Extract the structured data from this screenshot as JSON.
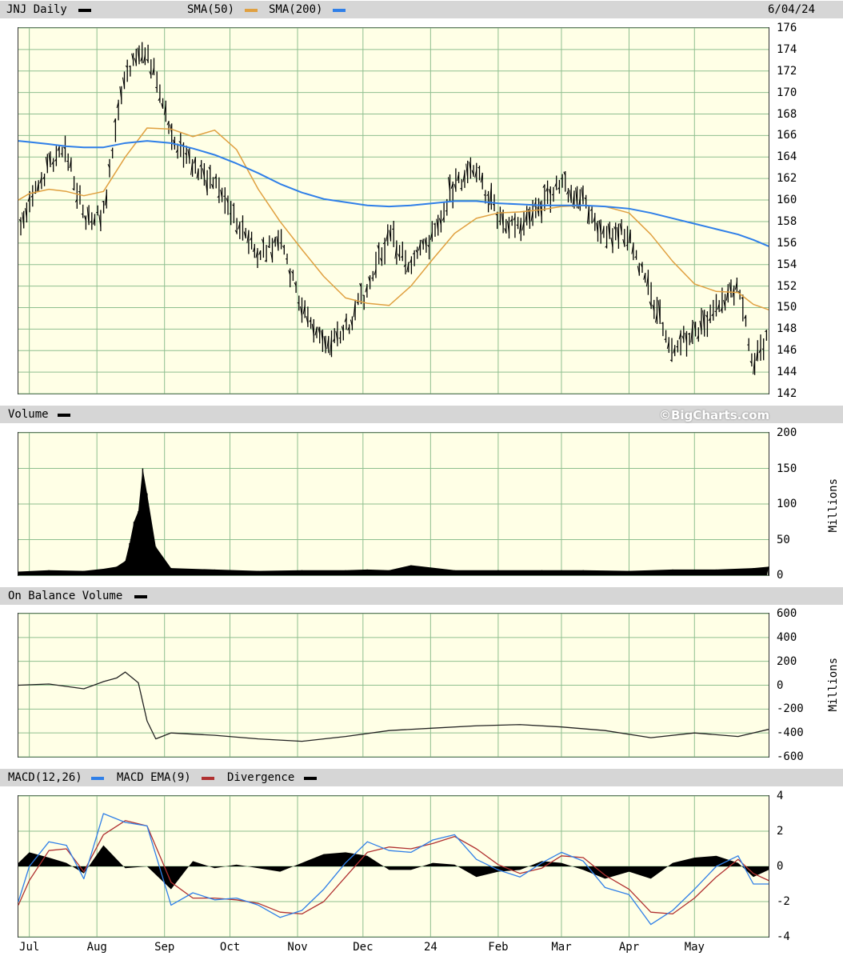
{
  "header": {
    "ticker_label": "JNJ Daily",
    "sma50_label": "SMA(50)",
    "sma200_label": "SMA(200)",
    "date": "6/04/24"
  },
  "volume_header": {
    "label": "Volume",
    "watermark": "©BigCharts.com"
  },
  "obv_header": {
    "label": "On Balance Volume"
  },
  "macd_header": {
    "label": "MACD(12,26)",
    "ema_label": "MACD EMA(9)",
    "div_label": "Divergence"
  },
  "colors": {
    "panel_bg": "#ffffe6",
    "grid": "#8fbf8f",
    "sma50": "#e0a040",
    "sma200": "#2f7fe8",
    "macd": "#2f7fe8",
    "ema": "#b03030",
    "bars": "#000000",
    "header_bg": "#d6d6d6"
  },
  "chart_data": [
    {
      "type": "line",
      "title": "JNJ Daily",
      "x": [
        "Jun 26",
        "Jul 1",
        "Jul 10",
        "Jul 18",
        "Jul 26",
        "Aug 4",
        "Aug 14",
        "Aug 24",
        "Sep 4",
        "Sep 14",
        "Sep 24",
        "Oct 4",
        "Oct 14",
        "Oct 24",
        "Nov 3",
        "Nov 13",
        "Nov 23",
        "Dec 3",
        "Dec 13",
        "Dec 23",
        "Jan 2",
        "Jan 12",
        "Jan 22",
        "Feb 1",
        "Feb 11",
        "Feb 21",
        "Mar 1",
        "Mar 11",
        "Mar 21",
        "Apr 1",
        "Apr 11",
        "Apr 21",
        "May 1",
        "May 11",
        "May 21",
        "May 28",
        "Jun 4"
      ],
      "series": [
        {
          "name": "JNJ",
          "values": [
            157.2,
            159.2,
            163.5,
            164.6,
            158.5,
            158.6,
            172.0,
            174.2,
            166.0,
            163.0,
            161.8,
            158.2,
            154.7,
            156.2,
            150.0,
            146.5,
            148.0,
            151.7,
            156.8,
            153.8,
            156.7,
            161.5,
            162.6,
            158.5,
            157.5,
            159.5,
            161.5,
            160.1,
            156.5,
            157.0,
            151.0,
            146.2,
            147.5,
            149.7,
            151.8,
            145.0,
            147.2
          ]
        },
        {
          "name": "SMA(50)",
          "values": [
            160.0,
            160.6,
            161.0,
            160.8,
            160.4,
            160.8,
            164.0,
            166.7,
            166.6,
            165.9,
            166.5,
            164.7,
            161.0,
            158.0,
            155.4,
            152.9,
            150.9,
            150.4,
            150.2,
            152.0,
            154.5,
            156.9,
            158.3,
            158.8,
            158.9,
            159.1,
            159.4,
            159.5,
            159.4,
            158.8,
            156.8,
            154.3,
            152.2,
            151.5,
            151.4,
            150.3,
            149.8
          ]
        },
        {
          "name": "SMA(200)",
          "values": [
            165.5,
            165.4,
            165.2,
            165.0,
            164.9,
            164.9,
            165.3,
            165.5,
            165.3,
            164.8,
            164.2,
            163.4,
            162.5,
            161.5,
            160.7,
            160.1,
            159.8,
            159.5,
            159.4,
            159.5,
            159.7,
            159.9,
            159.9,
            159.7,
            159.6,
            159.5,
            159.5,
            159.5,
            159.4,
            159.2,
            158.8,
            158.3,
            157.8,
            157.3,
            156.8,
            156.3,
            155.7
          ]
        }
      ],
      "ylim": [
        142,
        176
      ],
      "yticks": [
        "176",
        "174",
        "172",
        "170",
        "168",
        "166",
        "164",
        "162",
        "160",
        "158",
        "156",
        "154",
        "152",
        "150",
        "148",
        "146",
        "144",
        "142"
      ]
    },
    {
      "type": "bar",
      "title": "Volume",
      "x": [
        "Jun 26",
        "Jul 10",
        "Jul 26",
        "Aug 4",
        "Aug 10",
        "Aug 14",
        "Aug 16",
        "Aug 18",
        "Aug 20",
        "Aug 22",
        "Aug 24",
        "Aug 28",
        "Sep 4",
        "Sep 24",
        "Oct 14",
        "Nov 3",
        "Nov 23",
        "Dec 3",
        "Dec 13",
        "Dec 23",
        "Jan 12",
        "Feb 1",
        "Feb 21",
        "Mar 11",
        "Apr 1",
        "Apr 21",
        "May 11",
        "May 28",
        "Jun 4"
      ],
      "series": [
        {
          "name": "Volume",
          "values": [
            5,
            7,
            6,
            9,
            12,
            20,
            45,
            75,
            90,
            150,
            115,
            40,
            10,
            8,
            6,
            7,
            7,
            8,
            7,
            14,
            7,
            7,
            7,
            7,
            6,
            8,
            8,
            10,
            12
          ]
        }
      ],
      "ylim": [
        0,
        200
      ],
      "yticks": [
        "200",
        "150",
        "100",
        "50",
        "0"
      ],
      "unit_label": "Millions"
    },
    {
      "type": "line",
      "title": "On Balance Volume",
      "x": [
        "Jun 26",
        "Jul 10",
        "Jul 26",
        "Aug 4",
        "Aug 10",
        "Aug 14",
        "Aug 20",
        "Aug 24",
        "Aug 28",
        "Sep 4",
        "Sep 24",
        "Oct 14",
        "Nov 3",
        "Nov 23",
        "Dec 13",
        "Jan 2",
        "Jan 22",
        "Feb 11",
        "Mar 1",
        "Mar 21",
        "Apr 11",
        "May 1",
        "May 21",
        "Jun 4"
      ],
      "series": [
        {
          "name": "On Balance Volume",
          "values": [
            0,
            10,
            -30,
            30,
            60,
            110,
            20,
            -300,
            -450,
            -400,
            -420,
            -450,
            -470,
            -430,
            -380,
            -360,
            -340,
            -330,
            -350,
            -380,
            -440,
            -400,
            -430,
            -370
          ]
        }
      ],
      "ylim": [
        -600,
        600
      ],
      "yticks": [
        "600",
        "400",
        "200",
        "0",
        "-200",
        "-400",
        "-600"
      ],
      "unit_label": "Millions"
    },
    {
      "type": "line",
      "title": "MACD(12,26)",
      "x": [
        "Jun 26",
        "Jul 1",
        "Jul 10",
        "Jul 18",
        "Jul 26",
        "Aug 4",
        "Aug 14",
        "Aug 24",
        "Sep 4",
        "Sep 14",
        "Sep 24",
        "Oct 4",
        "Oct 14",
        "Oct 24",
        "Nov 3",
        "Nov 13",
        "Nov 23",
        "Dec 3",
        "Dec 13",
        "Dec 23",
        "Jan 2",
        "Jan 12",
        "Jan 22",
        "Feb 1",
        "Feb 11",
        "Feb 21",
        "Mar 1",
        "Mar 11",
        "Mar 21",
        "Apr 1",
        "Apr 11",
        "Apr 21",
        "May 1",
        "May 11",
        "May 21",
        "May 28",
        "Jun 4"
      ],
      "series": [
        {
          "name": "MACD(12,26)",
          "values": [
            -2.0,
            0.0,
            1.4,
            1.2,
            -0.7,
            3.0,
            2.5,
            2.3,
            -2.2,
            -1.5,
            -1.9,
            -1.8,
            -2.2,
            -2.9,
            -2.5,
            -1.3,
            0.2,
            1.4,
            0.9,
            0.8,
            1.5,
            1.8,
            0.4,
            -0.2,
            -0.6,
            0.2,
            0.8,
            0.3,
            -1.2,
            -1.6,
            -3.3,
            -2.5,
            -1.3,
            0.0,
            0.6,
            -1.0,
            -1.0
          ]
        },
        {
          "name": "MACD EMA(9)",
          "values": [
            -2.2,
            -0.8,
            0.9,
            1.0,
            -0.3,
            1.8,
            2.6,
            2.3,
            -0.9,
            -1.8,
            -1.8,
            -1.9,
            -2.1,
            -2.6,
            -2.7,
            -2.0,
            -0.6,
            0.8,
            1.1,
            1.0,
            1.3,
            1.7,
            1.0,
            0.1,
            -0.4,
            -0.1,
            0.6,
            0.5,
            -0.5,
            -1.3,
            -2.6,
            -2.7,
            -1.8,
            -0.6,
            0.4,
            -0.4,
            -0.8
          ]
        },
        {
          "name": "Divergence",
          "values": [
            0.2,
            0.8,
            0.5,
            0.2,
            -0.4,
            1.2,
            -0.1,
            0.0,
            -1.3,
            0.3,
            -0.1,
            0.1,
            -0.1,
            -0.3,
            0.2,
            0.7,
            0.8,
            0.6,
            -0.2,
            -0.2,
            0.2,
            0.1,
            -0.6,
            -0.3,
            -0.2,
            0.3,
            0.2,
            -0.2,
            -0.7,
            -0.3,
            -0.7,
            0.2,
            0.5,
            0.6,
            0.2,
            -0.6,
            -0.2
          ]
        }
      ],
      "ylim": [
        -4,
        4
      ],
      "yticks": [
        "4",
        "2",
        "0",
        "-2",
        "-4"
      ]
    }
  ],
  "x_axis": {
    "labels": [
      "Jul",
      "Aug",
      "Sep",
      "Oct",
      "Nov",
      "Dec",
      "24",
      "Feb",
      "Mar",
      "Apr",
      "May"
    ]
  }
}
